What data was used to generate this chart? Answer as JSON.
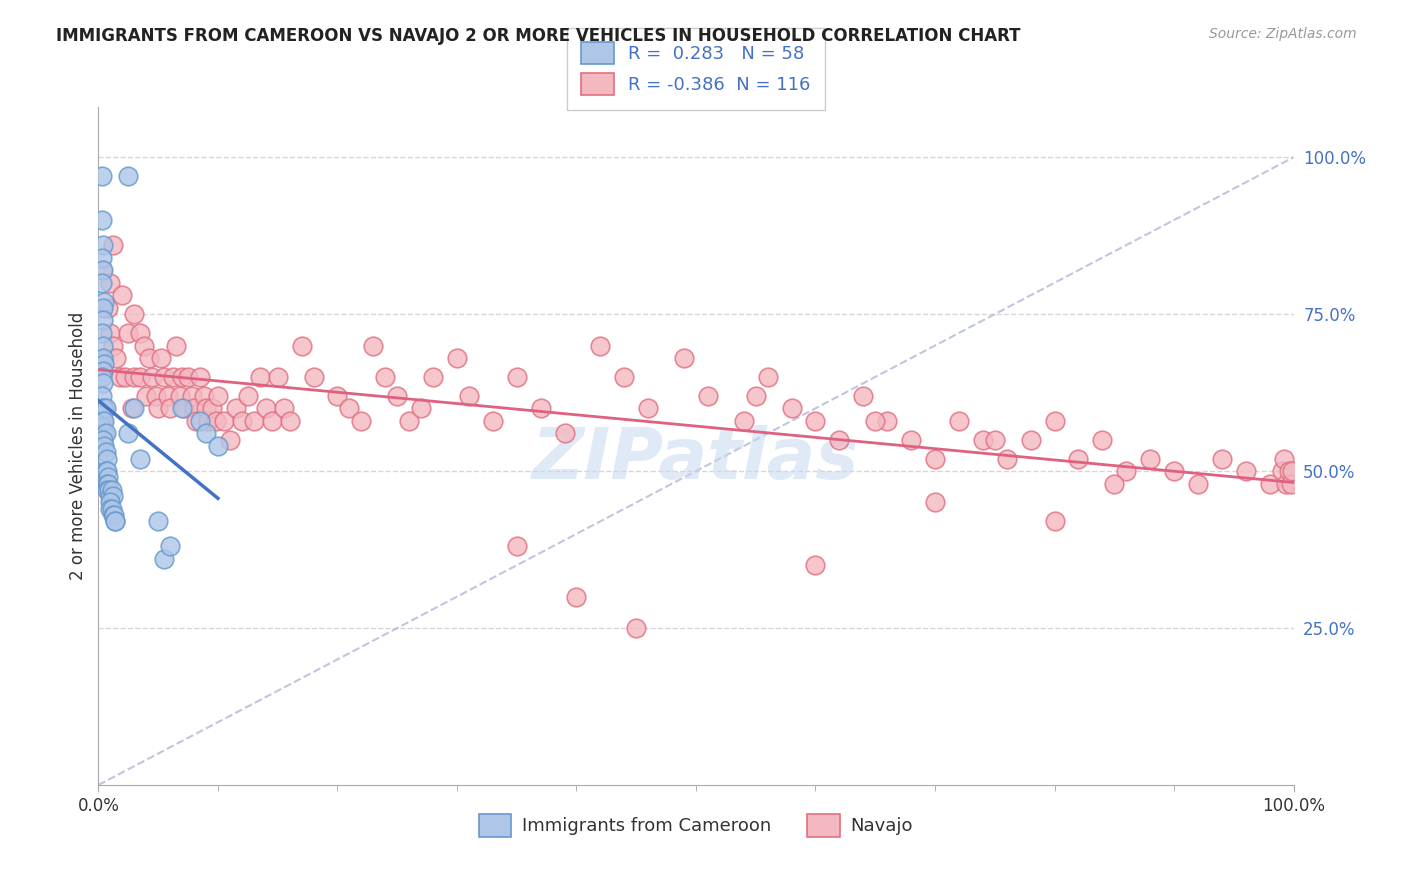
{
  "title": "IMMIGRANTS FROM CAMEROON VS NAVAJO 2 OR MORE VEHICLES IN HOUSEHOLD CORRELATION CHART",
  "source": "Source: ZipAtlas.com",
  "ylabel": "2 or more Vehicles in Household",
  "r_blue": 0.283,
  "n_blue": 58,
  "r_pink": -0.386,
  "n_pink": 116,
  "legend_blue": "Immigrants from Cameroon",
  "legend_pink": "Navajo",
  "ytick_labels": [
    "100.0%",
    "75.0%",
    "50.0%",
    "25.0%"
  ],
  "ytick_positions": [
    1.0,
    0.75,
    0.5,
    0.25
  ],
  "background_color": "#ffffff",
  "dot_blue_color": "#aec6e8",
  "dot_blue_edge": "#6699cc",
  "dot_pink_color": "#f4b8c1",
  "dot_pink_edge": "#e07080",
  "line_blue": "#4472c4",
  "line_pink": "#e06080",
  "ref_line_color": "#b0b8d8",
  "grid_color": "#cccccc",
  "blue_x": [
    0.003,
    0.025,
    0.003,
    0.004,
    0.003,
    0.004,
    0.003,
    0.005,
    0.004,
    0.004,
    0.003,
    0.004,
    0.004,
    0.005,
    0.004,
    0.003,
    0.004,
    0.003,
    0.005,
    0.004,
    0.003,
    0.004,
    0.003,
    0.005,
    0.006,
    0.005,
    0.006,
    0.004,
    0.005,
    0.006,
    0.007,
    0.006,
    0.007,
    0.008,
    0.007,
    0.008,
    0.007,
    0.009,
    0.01,
    0.011,
    0.012,
    0.01,
    0.01,
    0.011,
    0.012,
    0.013,
    0.014,
    0.014,
    0.025,
    0.03,
    0.035,
    0.05,
    0.055,
    0.06,
    0.07,
    0.085,
    0.09,
    0.1
  ],
  "blue_y": [
    0.97,
    0.97,
    0.9,
    0.86,
    0.84,
    0.82,
    0.8,
    0.77,
    0.76,
    0.74,
    0.72,
    0.7,
    0.68,
    0.67,
    0.66,
    0.65,
    0.64,
    0.62,
    0.6,
    0.6,
    0.59,
    0.58,
    0.57,
    0.56,
    0.6,
    0.58,
    0.56,
    0.55,
    0.54,
    0.53,
    0.52,
    0.5,
    0.5,
    0.49,
    0.48,
    0.48,
    0.47,
    0.47,
    0.46,
    0.47,
    0.46,
    0.45,
    0.44,
    0.44,
    0.43,
    0.43,
    0.42,
    0.42,
    0.56,
    0.6,
    0.52,
    0.42,
    0.36,
    0.38,
    0.6,
    0.58,
    0.56,
    0.54
  ],
  "pink_x": [
    0.003,
    0.005,
    0.008,
    0.01,
    0.01,
    0.012,
    0.012,
    0.015,
    0.018,
    0.02,
    0.022,
    0.025,
    0.028,
    0.03,
    0.03,
    0.035,
    0.035,
    0.038,
    0.04,
    0.042,
    0.045,
    0.048,
    0.05,
    0.052,
    0.055,
    0.058,
    0.06,
    0.062,
    0.065,
    0.068,
    0.07,
    0.072,
    0.075,
    0.078,
    0.08,
    0.082,
    0.085,
    0.088,
    0.09,
    0.092,
    0.095,
    0.098,
    0.1,
    0.105,
    0.11,
    0.115,
    0.12,
    0.125,
    0.13,
    0.135,
    0.14,
    0.145,
    0.15,
    0.155,
    0.16,
    0.17,
    0.18,
    0.2,
    0.21,
    0.22,
    0.23,
    0.24,
    0.25,
    0.26,
    0.27,
    0.28,
    0.3,
    0.31,
    0.33,
    0.35,
    0.37,
    0.39,
    0.42,
    0.44,
    0.46,
    0.49,
    0.51,
    0.54,
    0.56,
    0.58,
    0.6,
    0.62,
    0.64,
    0.66,
    0.68,
    0.7,
    0.72,
    0.74,
    0.76,
    0.78,
    0.8,
    0.82,
    0.84,
    0.86,
    0.88,
    0.9,
    0.92,
    0.94,
    0.96,
    0.98,
    0.99,
    0.992,
    0.994,
    0.996,
    0.998,
    0.999,
    0.35,
    0.4,
    0.45,
    0.55,
    0.6,
    0.65,
    0.7,
    0.75,
    0.8,
    0.85
  ],
  "pink_y": [
    0.82,
    0.68,
    0.76,
    0.72,
    0.8,
    0.7,
    0.86,
    0.68,
    0.65,
    0.78,
    0.65,
    0.72,
    0.6,
    0.65,
    0.75,
    0.65,
    0.72,
    0.7,
    0.62,
    0.68,
    0.65,
    0.62,
    0.6,
    0.68,
    0.65,
    0.62,
    0.6,
    0.65,
    0.7,
    0.62,
    0.65,
    0.6,
    0.65,
    0.62,
    0.6,
    0.58,
    0.65,
    0.62,
    0.6,
    0.58,
    0.6,
    0.58,
    0.62,
    0.58,
    0.55,
    0.6,
    0.58,
    0.62,
    0.58,
    0.65,
    0.6,
    0.58,
    0.65,
    0.6,
    0.58,
    0.7,
    0.65,
    0.62,
    0.6,
    0.58,
    0.7,
    0.65,
    0.62,
    0.58,
    0.6,
    0.65,
    0.68,
    0.62,
    0.58,
    0.65,
    0.6,
    0.56,
    0.7,
    0.65,
    0.6,
    0.68,
    0.62,
    0.58,
    0.65,
    0.6,
    0.58,
    0.55,
    0.62,
    0.58,
    0.55,
    0.52,
    0.58,
    0.55,
    0.52,
    0.55,
    0.58,
    0.52,
    0.55,
    0.5,
    0.52,
    0.5,
    0.48,
    0.52,
    0.5,
    0.48,
    0.5,
    0.52,
    0.48,
    0.5,
    0.48,
    0.5,
    0.38,
    0.3,
    0.25,
    0.62,
    0.35,
    0.58,
    0.45,
    0.55,
    0.42,
    0.48
  ]
}
